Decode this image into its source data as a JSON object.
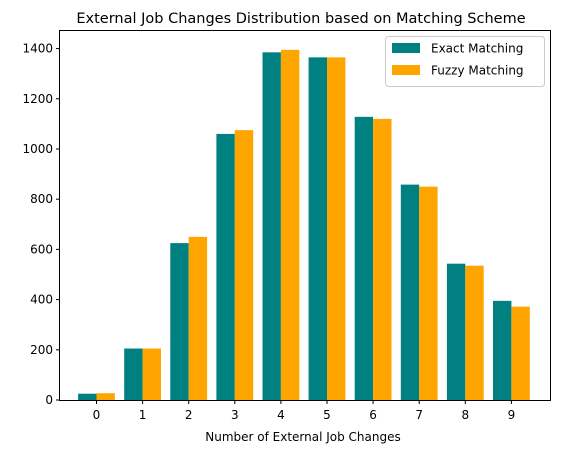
{
  "chart_data": {
    "type": "bar",
    "title": "External Job Changes Distribution based on Matching Scheme",
    "xlabel": "Number of External Job Changes",
    "ylabel": "",
    "categories": [
      "0",
      "1",
      "2",
      "3",
      "4",
      "5",
      "6",
      "7",
      "8",
      "9"
    ],
    "yticks": [
      "0",
      "200",
      "400",
      "600",
      "800",
      "1000",
      "1200",
      "1400"
    ],
    "ylim": [
      0,
      1470
    ],
    "grid": false,
    "legend_position": "top-right",
    "series": [
      {
        "name": "Exact Matching",
        "color": "#008080",
        "values": [
          25,
          205,
          625,
          1060,
          1385,
          1365,
          1128,
          858,
          543,
          395
        ]
      },
      {
        "name": "Fuzzy Matching",
        "color": "#ffa500",
        "values": [
          27,
          205,
          650,
          1075,
          1395,
          1365,
          1120,
          850,
          535,
          372
        ]
      }
    ]
  }
}
